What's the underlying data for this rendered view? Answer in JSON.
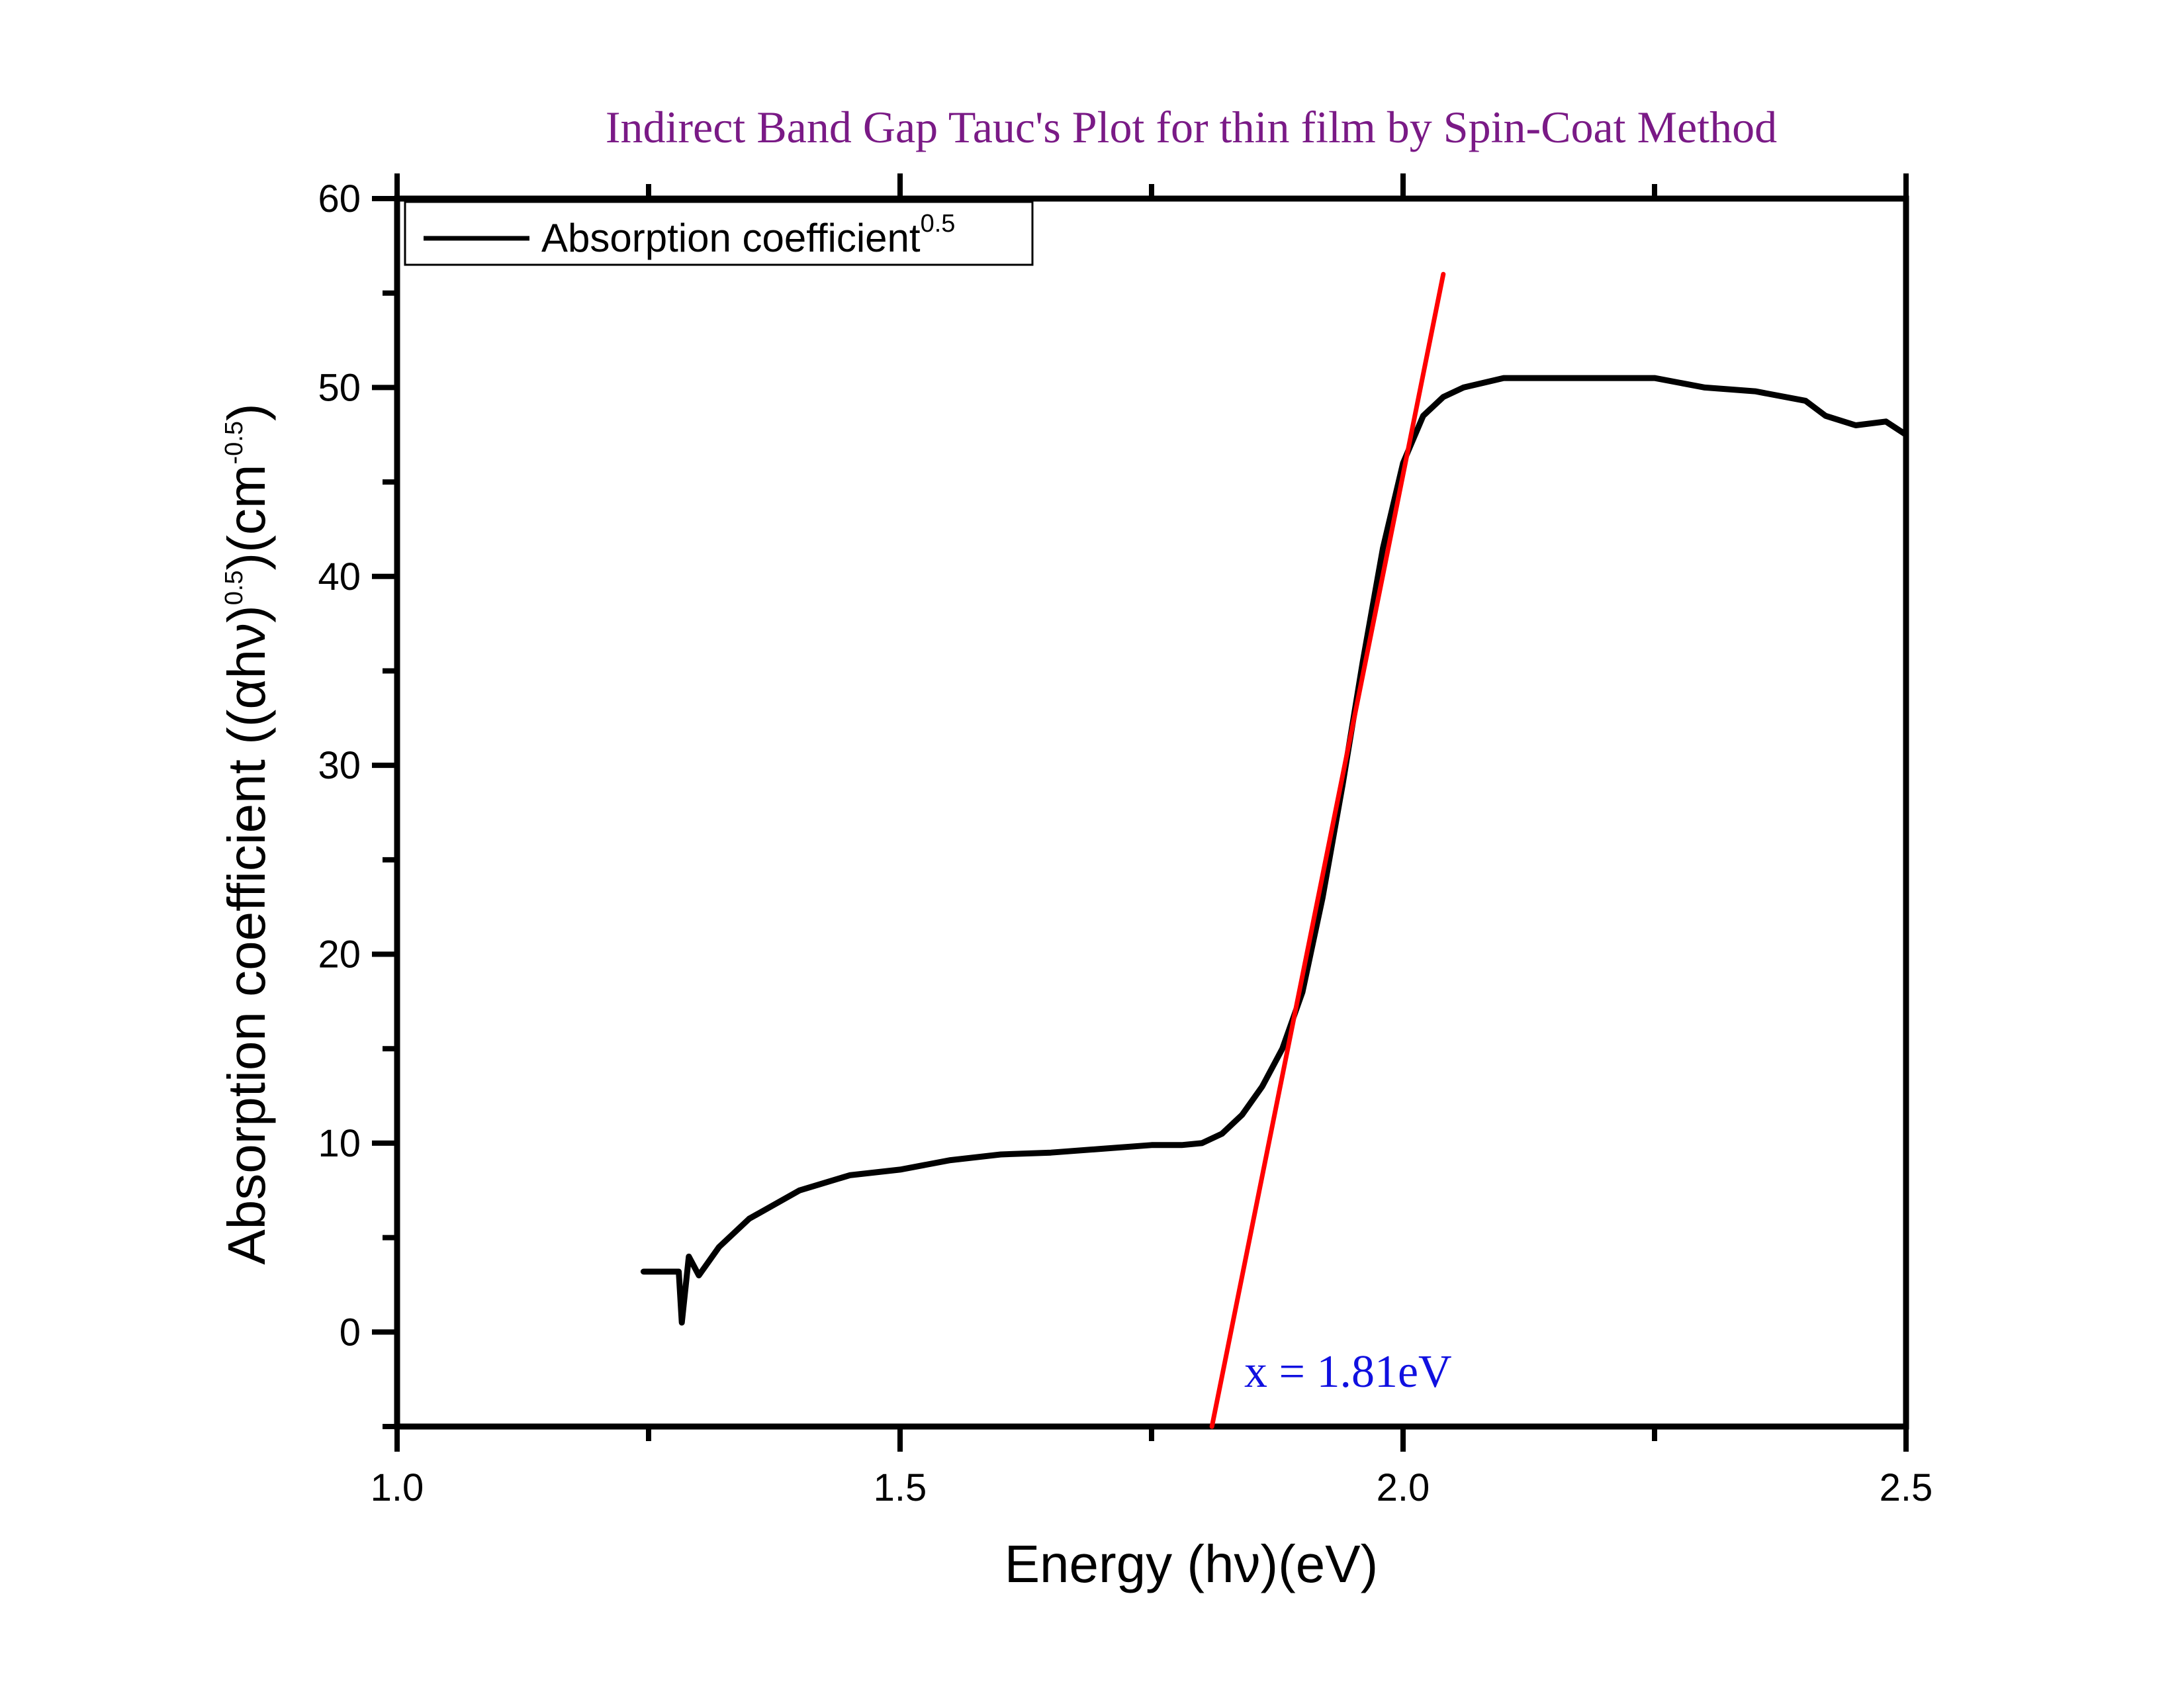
{
  "chart_data": {
    "type": "line",
    "title": "Indirect Band Gap Tauc's Plot for thin film by Spin-Coat Method",
    "xlabel": "Energy (hν)(eV)",
    "ylabel": {
      "main": "Absorption coefficient ((αhν)",
      "exp1": "0.5",
      "mid": ")(cm",
      "exp2": "-0.5",
      "end": ")"
    },
    "xlim": [
      1.0,
      2.5
    ],
    "ylim": [
      -5,
      60
    ],
    "xticks": [
      "1.0",
      "1.5",
      "2.0",
      "2.5"
    ],
    "yticks": [
      "0",
      "10",
      "20",
      "30",
      "40",
      "50",
      "60"
    ],
    "xtick_values": [
      1.0,
      1.5,
      2.0,
      2.5
    ],
    "ytick_values": [
      0,
      10,
      20,
      30,
      40,
      50,
      60
    ],
    "grid": false,
    "legend_position": "top-left",
    "series": [
      {
        "name": "Absorption coefficient",
        "name_sup": "0.5",
        "color": "#000000",
        "x": [
          1.245,
          1.28,
          1.283,
          1.29,
          1.3,
          1.32,
          1.35,
          1.4,
          1.45,
          1.5,
          1.55,
          1.6,
          1.65,
          1.7,
          1.75,
          1.78,
          1.8,
          1.82,
          1.84,
          1.86,
          1.88,
          1.9,
          1.92,
          1.94,
          1.96,
          1.98,
          2.0,
          2.02,
          2.04,
          2.06,
          2.1,
          2.15,
          2.2,
          2.25,
          2.3,
          2.35,
          2.4,
          2.42,
          2.45,
          2.48,
          2.5
        ],
        "y": [
          3.2,
          3.2,
          0.5,
          4.0,
          3.0,
          4.5,
          6.0,
          7.5,
          8.3,
          8.6,
          9.1,
          9.4,
          9.5,
          9.7,
          9.9,
          9.9,
          10.0,
          10.5,
          11.5,
          13.0,
          15.0,
          18.0,
          23.0,
          29.0,
          35.5,
          41.5,
          46.0,
          48.5,
          49.5,
          50.0,
          50.5,
          50.5,
          50.5,
          50.5,
          50.0,
          49.8,
          49.3,
          48.5,
          48.0,
          48.2,
          47.5
        ]
      },
      {
        "name": "",
        "color": "#ff0000",
        "x": [
          1.81,
          2.04
        ],
        "y": [
          -5,
          56
        ]
      }
    ],
    "annotations": [
      {
        "text": "x = 1.81eV",
        "x": 1.83,
        "y": -2.5
      }
    ]
  }
}
